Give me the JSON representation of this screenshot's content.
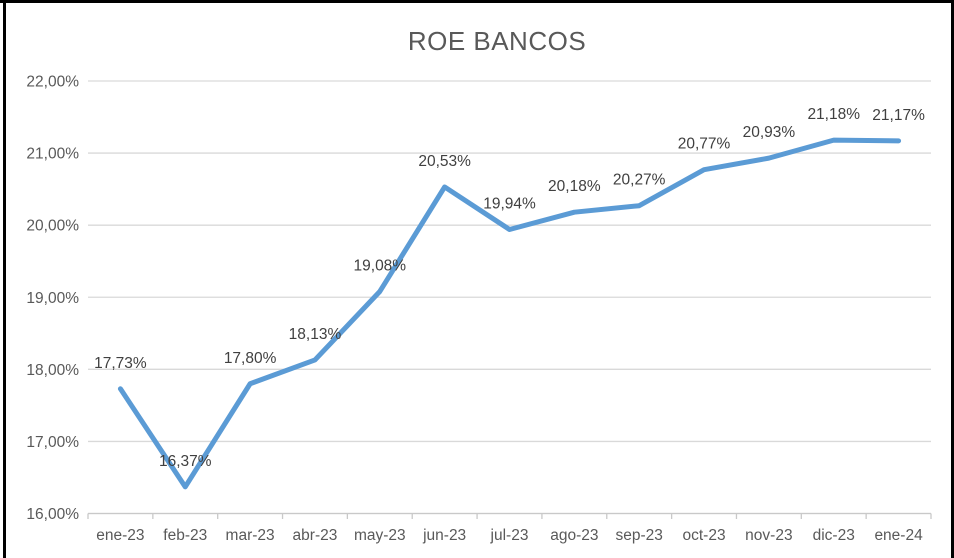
{
  "window": {
    "background": "#ffffff",
    "frame_color": "#000000"
  },
  "chart_data": {
    "type": "line",
    "title": "ROE BANCOS",
    "categories": [
      "ene-23",
      "feb-23",
      "mar-23",
      "abr-23",
      "may-23",
      "jun-23",
      "jul-23",
      "ago-23",
      "sep-23",
      "oct-23",
      "nov-23",
      "dic-23",
      "ene-24"
    ],
    "values": [
      17.73,
      16.37,
      17.8,
      18.13,
      19.08,
      20.53,
      19.94,
      20.18,
      20.27,
      20.77,
      20.93,
      21.18,
      21.17
    ],
    "data_labels": [
      "17,73%",
      "16,37%",
      "17,80%",
      "18,13%",
      "19,08%",
      "20,53%",
      "19,94%",
      "20,18%",
      "20,27%",
      "20,77%",
      "20,93%",
      "21,18%",
      "21,17%"
    ],
    "xlabel": "",
    "ylabel": "",
    "ylim": [
      16,
      22
    ],
    "y_ticks": {
      "values": [
        16,
        17,
        18,
        19,
        20,
        21,
        22
      ],
      "labels": [
        "16,00%",
        "17,00%",
        "18,00%",
        "19,00%",
        "20,00%",
        "21,00%",
        "22,00%"
      ]
    },
    "grid": true,
    "legend": false,
    "colors": {
      "line": "#5B9BD5",
      "title": "#595959",
      "axis_labels": "#595959",
      "data_labels": "#404040",
      "gridline": "#D9D9D9",
      "axis_line": "#C9C9C9"
    }
  }
}
